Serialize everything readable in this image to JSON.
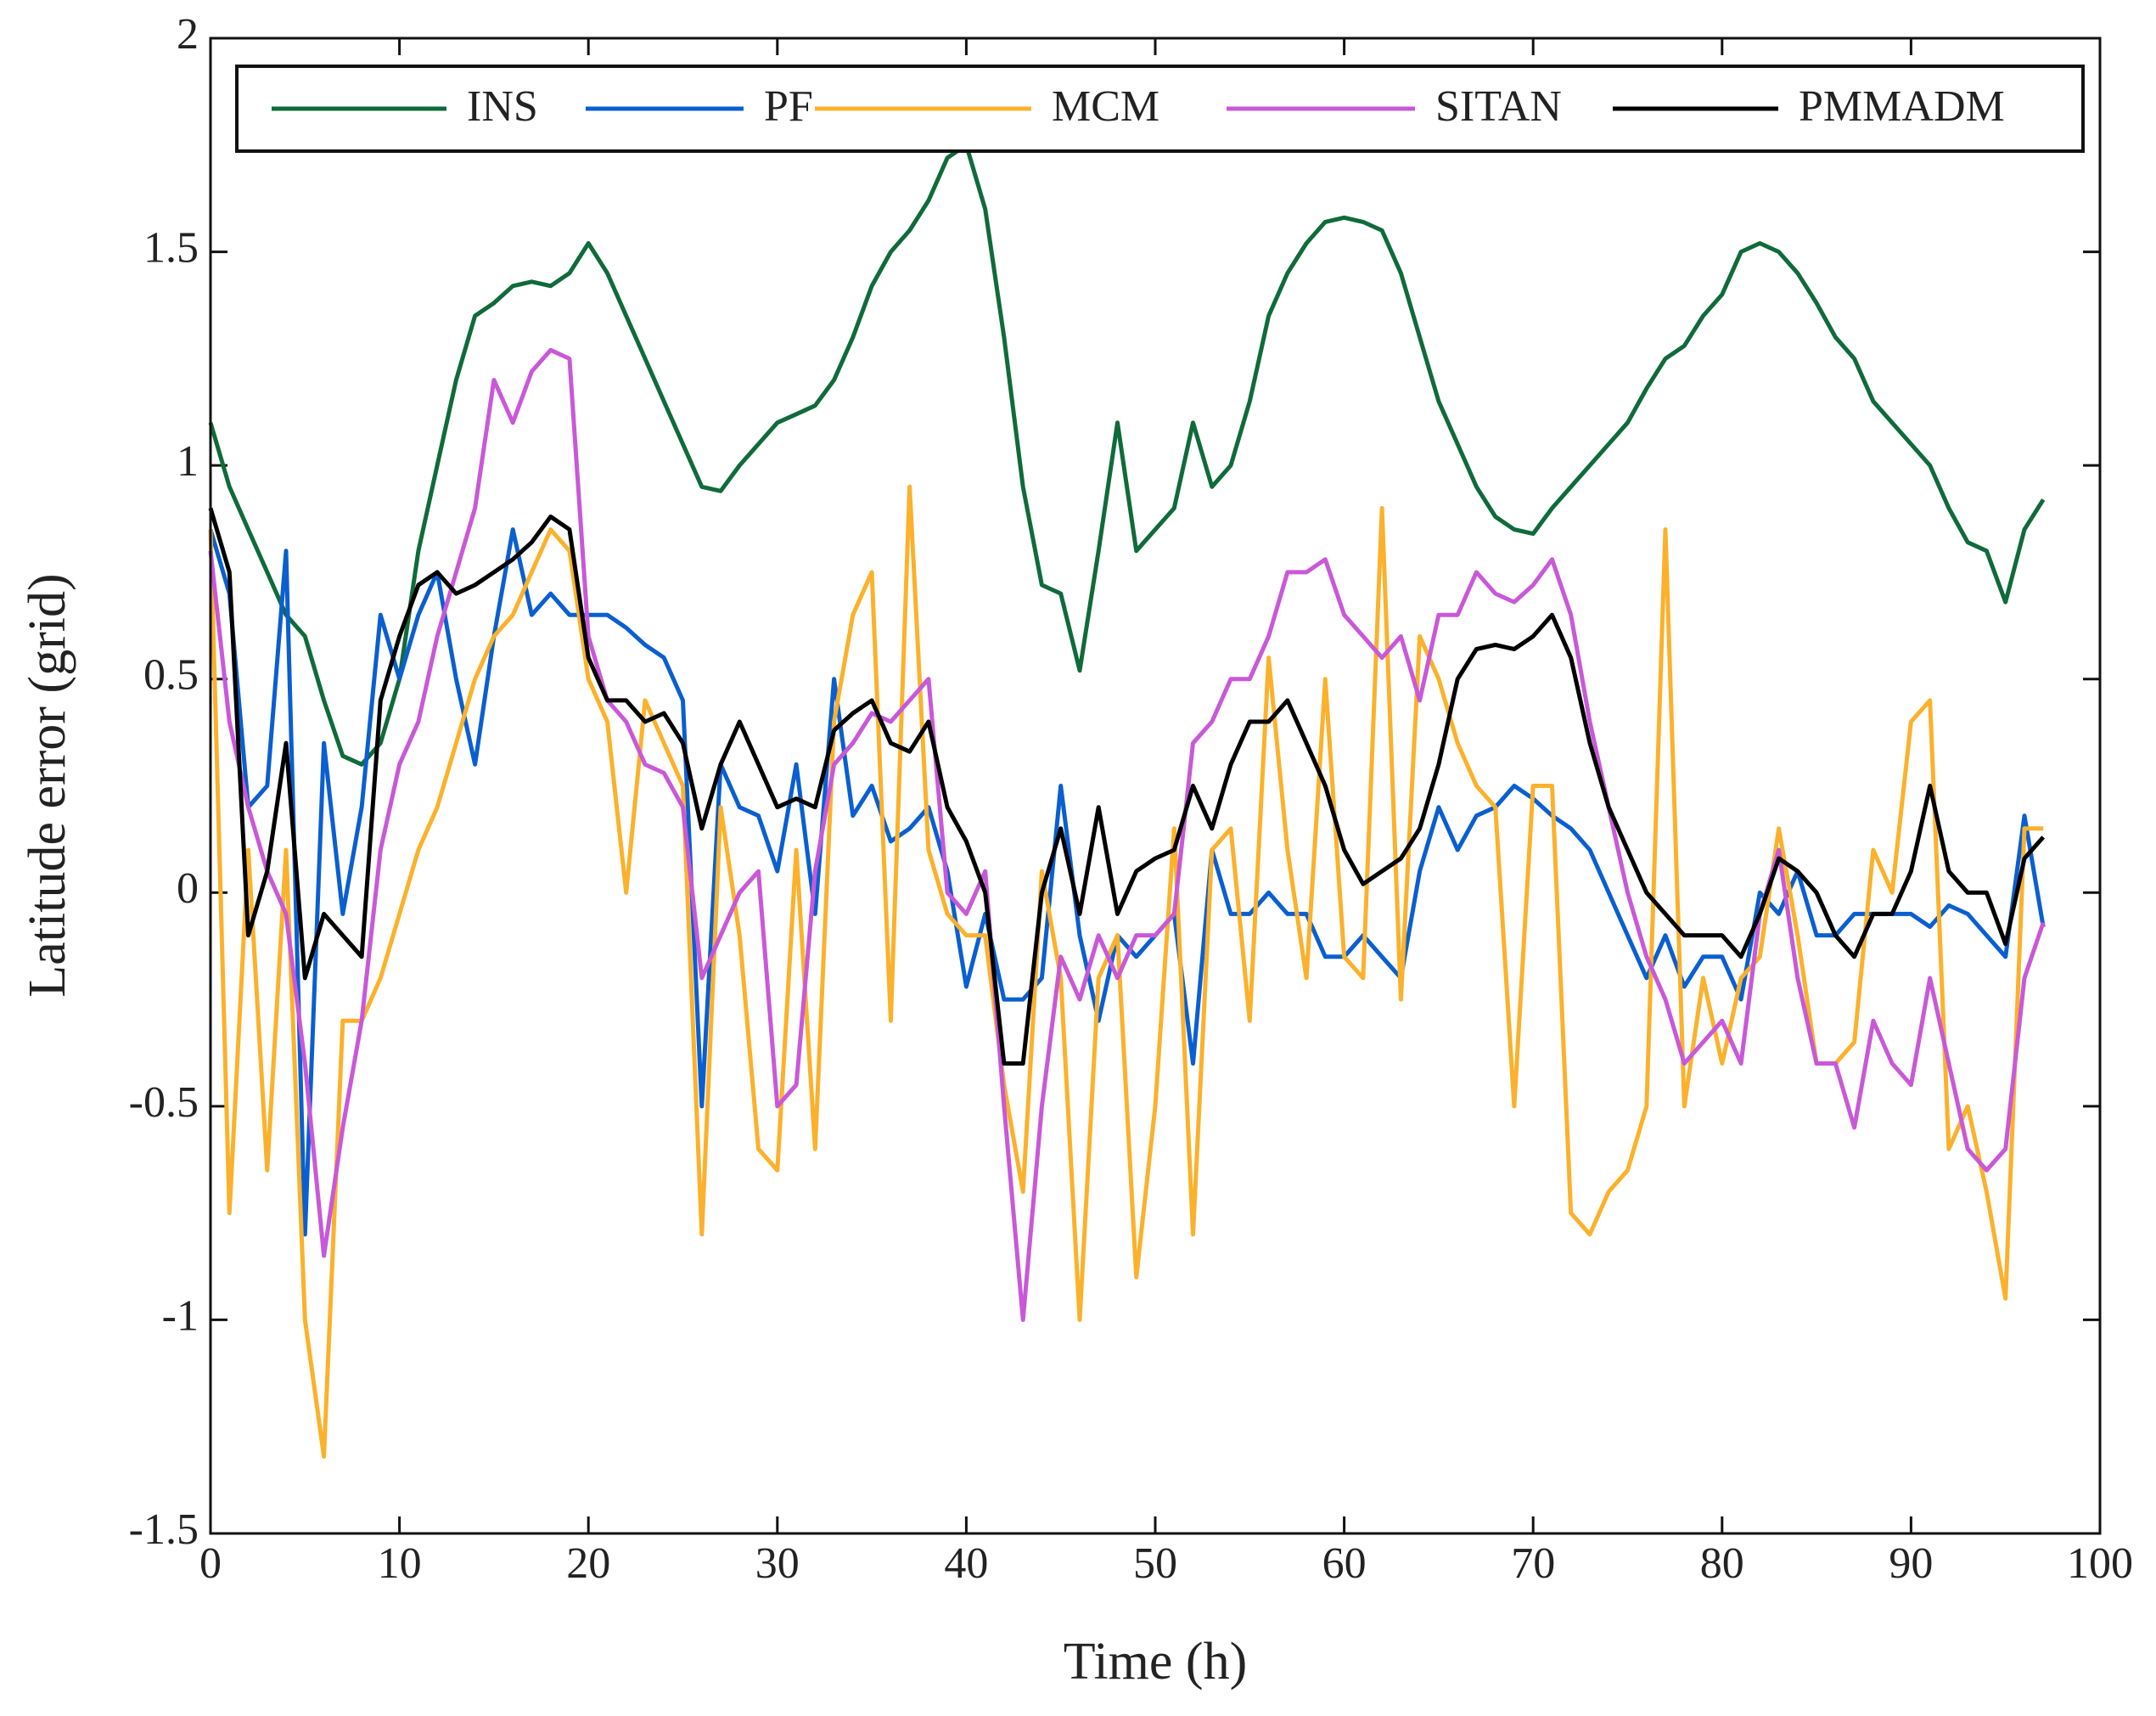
{
  "chart_data": {
    "type": "line",
    "xlabel": "Time (h)",
    "ylabel": "Latitude error (grid)",
    "x": [
      0,
      1,
      2,
      3,
      4,
      5,
      6,
      7,
      8,
      9,
      10,
      11,
      12,
      13,
      14,
      15,
      16,
      17,
      18,
      19,
      20,
      21,
      22,
      23,
      24,
      25,
      26,
      27,
      28,
      29,
      30,
      31,
      32,
      33,
      34,
      35,
      36,
      37,
      38,
      39,
      40,
      41,
      42,
      43,
      44,
      45,
      46,
      47,
      48,
      49,
      50,
      51,
      52,
      53,
      54,
      55,
      56,
      57,
      58,
      59,
      60,
      61,
      62,
      63,
      64,
      65,
      66,
      67,
      68,
      69,
      70,
      71,
      72,
      73,
      74,
      75,
      76,
      77,
      78,
      79,
      80,
      81,
      82,
      83,
      84,
      85,
      86,
      87,
      88,
      89,
      90,
      91,
      92,
      93,
      94,
      95,
      96,
      97
    ],
    "series": [
      {
        "name": "INS",
        "color": "#0f6b3a",
        "values": [
          1.1,
          0.95,
          0.85,
          0.75,
          0.65,
          0.6,
          0.45,
          0.32,
          0.3,
          0.35,
          0.5,
          0.8,
          1.0,
          1.2,
          1.35,
          1.38,
          1.42,
          1.43,
          1.42,
          1.45,
          1.52,
          1.45,
          1.35,
          1.25,
          1.15,
          1.05,
          0.95,
          0.94,
          1.0,
          1.05,
          1.1,
          1.12,
          1.14,
          1.2,
          1.3,
          1.42,
          1.5,
          1.55,
          1.62,
          1.72,
          1.75,
          1.6,
          1.3,
          0.95,
          0.72,
          0.7,
          0.52,
          0.8,
          1.1,
          0.8,
          0.85,
          0.9,
          1.1,
          0.95,
          1.0,
          1.15,
          1.35,
          1.45,
          1.52,
          1.57,
          1.58,
          1.57,
          1.55,
          1.45,
          1.3,
          1.15,
          1.05,
          0.95,
          0.88,
          0.85,
          0.84,
          0.9,
          0.95,
          1.0,
          1.05,
          1.1,
          1.18,
          1.25,
          1.28,
          1.35,
          1.4,
          1.5,
          1.52,
          1.5,
          1.45,
          1.38,
          1.3,
          1.25,
          1.15,
          1.1,
          1.05,
          1.0,
          0.9,
          0.82,
          0.8,
          0.68,
          0.85,
          0.92
        ]
      },
      {
        "name": "PF",
        "color": "#0a5fd0",
        "values": [
          0.85,
          0.7,
          0.2,
          0.25,
          0.8,
          -0.8,
          0.35,
          -0.05,
          0.2,
          0.65,
          0.5,
          0.65,
          0.75,
          0.5,
          0.3,
          0.6,
          0.85,
          0.65,
          0.7,
          0.65,
          0.65,
          0.65,
          0.62,
          0.58,
          0.55,
          0.45,
          -0.5,
          0.3,
          0.2,
          0.18,
          0.05,
          0.3,
          -0.05,
          0.5,
          0.18,
          0.25,
          0.12,
          0.15,
          0.2,
          0.05,
          -0.22,
          -0.05,
          -0.25,
          -0.25,
          -0.2,
          0.25,
          -0.1,
          -0.3,
          -0.1,
          -0.15,
          -0.1,
          -0.05,
          -0.4,
          0.1,
          -0.05,
          -0.05,
          0.0,
          -0.05,
          -0.05,
          -0.15,
          -0.15,
          -0.1,
          -0.15,
          -0.2,
          0.05,
          0.2,
          0.1,
          0.18,
          0.2,
          0.25,
          0.22,
          0.18,
          0.15,
          0.1,
          0.0,
          -0.1,
          -0.2,
          -0.1,
          -0.22,
          -0.15,
          -0.15,
          -0.25,
          0.0,
          -0.05,
          0.05,
          -0.1,
          -0.1,
          -0.05,
          -0.05,
          -0.05,
          -0.05,
          -0.08,
          -0.03,
          -0.05,
          -0.1,
          -0.15,
          0.18,
          -0.08
        ]
      },
      {
        "name": "MCM",
        "color": "#fbb12b",
        "values": [
          0.85,
          -0.75,
          0.1,
          -0.65,
          0.1,
          -1.0,
          -1.32,
          -0.3,
          -0.3,
          -0.2,
          -0.05,
          0.1,
          0.2,
          0.35,
          0.5,
          0.6,
          0.65,
          0.75,
          0.85,
          0.8,
          0.5,
          0.4,
          0.0,
          0.45,
          0.35,
          0.25,
          -0.8,
          0.2,
          -0.1,
          -0.6,
          -0.65,
          0.1,
          -0.6,
          0.4,
          0.65,
          0.75,
          -0.3,
          0.95,
          0.1,
          -0.05,
          -0.1,
          -0.1,
          -0.45,
          -0.7,
          0.05,
          -0.2,
          -1.0,
          -0.2,
          -0.1,
          -0.9,
          -0.5,
          0.15,
          -0.8,
          0.1,
          0.15,
          -0.3,
          0.55,
          0.1,
          -0.2,
          0.5,
          -0.15,
          -0.2,
          0.9,
          -0.25,
          0.6,
          0.5,
          0.35,
          0.25,
          0.2,
          -0.5,
          0.25,
          0.25,
          -0.75,
          -0.8,
          -0.7,
          -0.65,
          -0.5,
          0.85,
          -0.5,
          -0.2,
          -0.4,
          -0.2,
          -0.15,
          0.15,
          -0.1,
          -0.4,
          -0.4,
          -0.35,
          0.1,
          0.0,
          0.4,
          0.45,
          -0.6,
          -0.5,
          -0.7,
          -0.95,
          0.15,
          0.15
        ]
      },
      {
        "name": "SITAN",
        "color": "#c958d8",
        "values": [
          0.8,
          0.4,
          0.2,
          0.05,
          -0.05,
          -0.4,
          -0.85,
          -0.55,
          -0.3,
          0.1,
          0.3,
          0.4,
          0.6,
          0.75,
          0.9,
          1.2,
          1.1,
          1.22,
          1.27,
          1.25,
          0.6,
          0.45,
          0.4,
          0.3,
          0.28,
          0.2,
          -0.2,
          -0.1,
          0.0,
          0.05,
          -0.5,
          -0.45,
          0.05,
          0.3,
          0.35,
          0.42,
          0.4,
          0.45,
          0.5,
          0.0,
          -0.05,
          0.05,
          -0.5,
          -1.0,
          -0.5,
          -0.15,
          -0.25,
          -0.1,
          -0.2,
          -0.1,
          -0.1,
          -0.05,
          0.35,
          0.4,
          0.5,
          0.5,
          0.6,
          0.75,
          0.75,
          0.78,
          0.65,
          0.6,
          0.55,
          0.6,
          0.45,
          0.65,
          0.65,
          0.75,
          0.7,
          0.68,
          0.72,
          0.78,
          0.65,
          0.4,
          0.2,
          0.0,
          -0.15,
          -0.25,
          -0.4,
          -0.35,
          -0.3,
          -0.4,
          -0.05,
          0.1,
          -0.2,
          -0.4,
          -0.4,
          -0.55,
          -0.3,
          -0.4,
          -0.45,
          -0.2,
          -0.4,
          -0.6,
          -0.65,
          -0.6,
          -0.2,
          -0.07
        ]
      },
      {
        "name": "PMMADM",
        "color": "#000000",
        "values": [
          0.9,
          0.75,
          -0.1,
          0.05,
          0.35,
          -0.2,
          -0.05,
          -0.1,
          -0.15,
          0.45,
          0.6,
          0.72,
          0.75,
          0.7,
          0.72,
          0.75,
          0.78,
          0.82,
          0.88,
          0.85,
          0.55,
          0.45,
          0.45,
          0.4,
          0.42,
          0.35,
          0.15,
          0.3,
          0.4,
          0.3,
          0.2,
          0.22,
          0.2,
          0.38,
          0.42,
          0.45,
          0.35,
          0.33,
          0.4,
          0.2,
          0.12,
          0.0,
          -0.4,
          -0.4,
          0.0,
          0.15,
          -0.05,
          0.2,
          -0.05,
          0.05,
          0.08,
          0.1,
          0.25,
          0.15,
          0.3,
          0.4,
          0.4,
          0.45,
          0.35,
          0.25,
          0.1,
          0.02,
          0.05,
          0.08,
          0.15,
          0.3,
          0.5,
          0.57,
          0.58,
          0.57,
          0.6,
          0.65,
          0.55,
          0.35,
          0.2,
          0.1,
          0.0,
          -0.05,
          -0.1,
          -0.1,
          -0.1,
          -0.15,
          -0.05,
          0.08,
          0.05,
          0.0,
          -0.1,
          -0.15,
          -0.05,
          -0.05,
          0.05,
          0.25,
          0.05,
          0.0,
          0.0,
          -0.12,
          0.08,
          0.13
        ]
      }
    ],
    "xlim": [
      0,
      100
    ],
    "xticks": [
      0,
      10,
      20,
      30,
      40,
      50,
      60,
      70,
      80,
      90,
      100
    ],
    "ylim": [
      -1.5,
      2
    ],
    "yticks": [
      -1.5,
      -1,
      -0.5,
      0,
      0.5,
      1,
      1.5,
      2
    ],
    "legend": "top",
    "grid": false
  }
}
